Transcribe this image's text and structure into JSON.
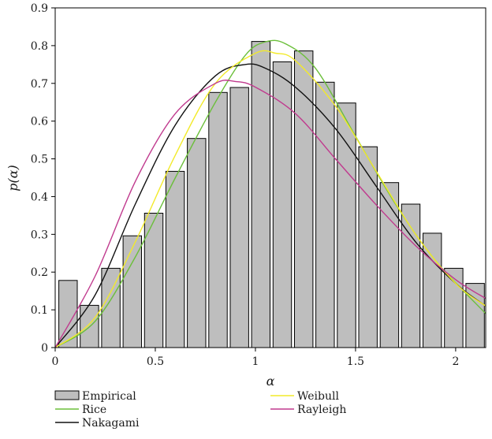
{
  "chart_data": {
    "type": "bar",
    "xlabel": "α",
    "ylabel": "p(α)",
    "xlim": [
      0,
      2.15
    ],
    "ylim": [
      0,
      0.9
    ],
    "xticks": [
      0,
      0.5,
      1,
      1.5,
      2
    ],
    "yticks": [
      0,
      0.1,
      0.2,
      0.3,
      0.4,
      0.5,
      0.6,
      0.7,
      0.8,
      0.9
    ],
    "grid": false,
    "legend_position": "bottom",
    "bars": {
      "name": "Empirical",
      "color": "#bebebe",
      "bin_width": 0.107,
      "centers": [
        0.064,
        0.171,
        0.278,
        0.385,
        0.492,
        0.599,
        0.706,
        0.813,
        0.92,
        1.027,
        1.134,
        1.241,
        1.348,
        1.455,
        1.562,
        1.669,
        1.776,
        1.883,
        1.99,
        2.097
      ],
      "values": [
        0.178,
        0.112,
        0.21,
        0.296,
        0.356,
        0.467,
        0.554,
        0.676,
        0.689,
        0.811,
        0.757,
        0.786,
        0.703,
        0.648,
        0.532,
        0.437,
        0.38,
        0.303,
        0.21,
        0.17
      ]
    },
    "series": [
      {
        "name": "Rice",
        "color": "#6bbf3a",
        "x": [
          0,
          0.2,
          0.4,
          0.6,
          0.8,
          0.95,
          1.05,
          1.15,
          1.3,
          1.5,
          1.7,
          1.9,
          2.15
        ],
        "y": [
          0,
          0.07,
          0.24,
          0.45,
          0.65,
          0.775,
          0.81,
          0.805,
          0.74,
          0.56,
          0.38,
          0.23,
          0.09
        ]
      },
      {
        "name": "Nakagami",
        "color": "#111111",
        "x": [
          0,
          0.2,
          0.4,
          0.6,
          0.8,
          0.95,
          1.05,
          1.2,
          1.4,
          1.6,
          1.8,
          2.0,
          2.15
        ],
        "y": [
          0,
          0.14,
          0.38,
          0.59,
          0.72,
          0.75,
          0.74,
          0.69,
          0.58,
          0.43,
          0.28,
          0.17,
          0.11
        ]
      },
      {
        "name": "Weibull",
        "color": "#f2ea2a",
        "x": [
          0,
          0.2,
          0.4,
          0.6,
          0.8,
          1.0,
          1.1,
          1.2,
          1.4,
          1.6,
          1.8,
          2.0,
          2.15
        ],
        "y": [
          0,
          0.08,
          0.28,
          0.51,
          0.7,
          0.78,
          0.78,
          0.76,
          0.64,
          0.47,
          0.3,
          0.17,
          0.11
        ]
      },
      {
        "name": "Rayleigh",
        "color": "#c03a8e",
        "x": [
          0,
          0.2,
          0.4,
          0.6,
          0.8,
          0.9,
          1.0,
          1.2,
          1.4,
          1.6,
          1.8,
          2.0,
          2.15
        ],
        "y": [
          0,
          0.19,
          0.44,
          0.62,
          0.7,
          0.705,
          0.69,
          0.62,
          0.5,
          0.38,
          0.27,
          0.18,
          0.13
        ]
      }
    ],
    "legend": {
      "left_column": [
        "Empirical",
        "Rice",
        "Nakagami"
      ],
      "right_column": [
        "Weibull",
        "Rayleigh"
      ]
    }
  }
}
